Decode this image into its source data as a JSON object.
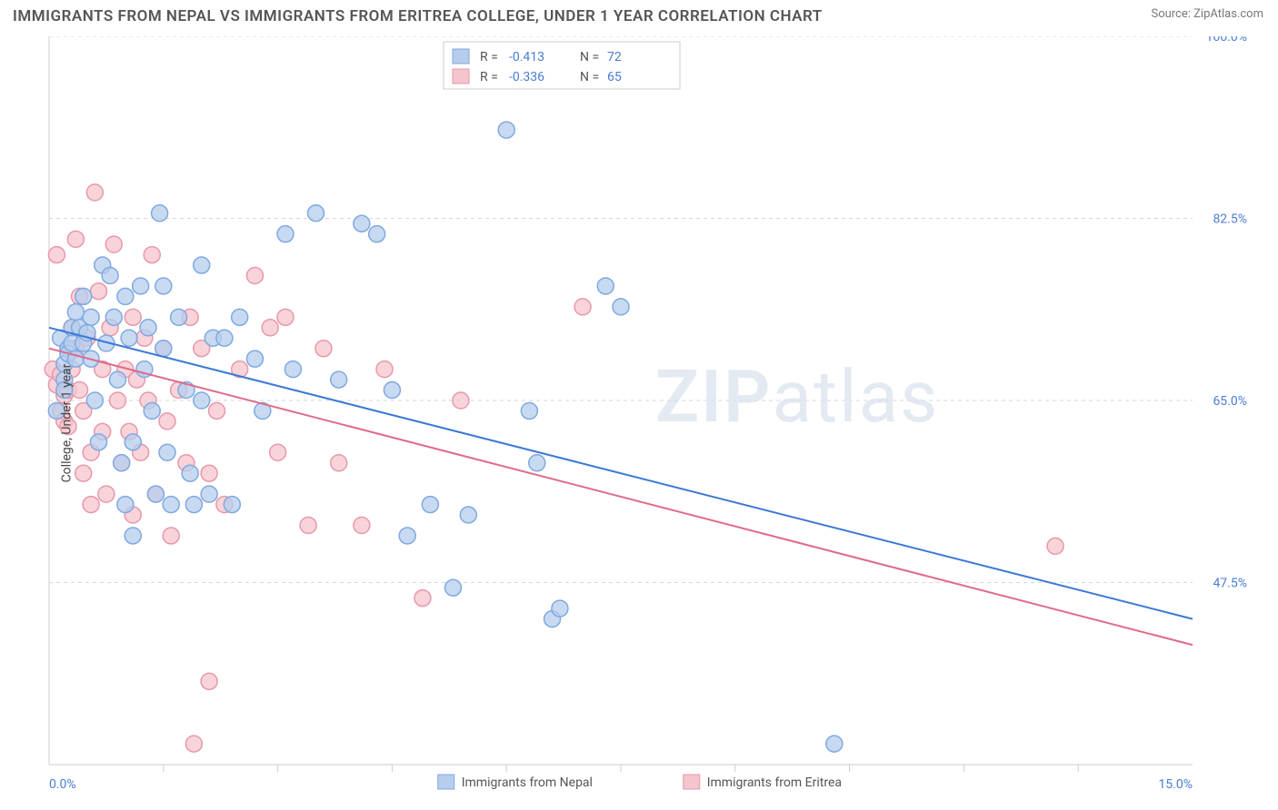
{
  "title": "IMMIGRANTS FROM NEPAL VS IMMIGRANTS FROM ERITREA COLLEGE, UNDER 1 YEAR CORRELATION CHART",
  "source_label": "Source: ZipAtlas.com",
  "ylabel": "College, Under 1 year",
  "watermark": {
    "part1": "ZIP",
    "part2": "atlas"
  },
  "chart": {
    "type": "scatter",
    "xlim": [
      0,
      15
    ],
    "ylim": [
      30,
      100
    ],
    "x_tick_labels": {
      "0": "0.0%",
      "15": "15.0%"
    },
    "x_minor_ticks": [
      1.5,
      3,
      4.5,
      6,
      7.5,
      9,
      10.5,
      12,
      13.5
    ],
    "y_gridlines": [
      47.5,
      65.0,
      82.5,
      100.0
    ],
    "y_tick_labels": {
      "47.5": "47.5%",
      "65.0": "65.0%",
      "82.5": "82.5%",
      "100.0": "100.0%"
    },
    "background_color": "#ffffff",
    "grid_color": "#d7d7d7",
    "axis_color": "#cccccc",
    "marker_radius": 9,
    "marker_stroke_width": 1.5,
    "line_width": 2,
    "series": [
      {
        "name": "Immigrants from Nepal",
        "fill": "#b6cded",
        "stroke": "#7fa9e0",
        "line_color": "#3b78d6",
        "R": "-0.413",
        "N": "72",
        "trend": {
          "x1": 0,
          "y1": 72.0,
          "x2": 15,
          "y2": 44.0
        },
        "points": [
          [
            0.1,
            64
          ],
          [
            0.15,
            71
          ],
          [
            0.2,
            68.5
          ],
          [
            0.2,
            67
          ],
          [
            0.2,
            66
          ],
          [
            0.25,
            70
          ],
          [
            0.25,
            69.5
          ],
          [
            0.3,
            72
          ],
          [
            0.3,
            70.5
          ],
          [
            0.35,
            73.5
          ],
          [
            0.35,
            69
          ],
          [
            0.4,
            72
          ],
          [
            0.45,
            75
          ],
          [
            0.45,
            70.5
          ],
          [
            0.5,
            71.5
          ],
          [
            0.55,
            73
          ],
          [
            0.55,
            69
          ],
          [
            0.6,
            65
          ],
          [
            0.65,
            61
          ],
          [
            0.7,
            78
          ],
          [
            0.75,
            70.5
          ],
          [
            0.8,
            77
          ],
          [
            0.85,
            73
          ],
          [
            0.9,
            67
          ],
          [
            0.95,
            59
          ],
          [
            1.0,
            75
          ],
          [
            1.0,
            55
          ],
          [
            1.05,
            71
          ],
          [
            1.1,
            61
          ],
          [
            1.1,
            52
          ],
          [
            1.2,
            76
          ],
          [
            1.25,
            68
          ],
          [
            1.3,
            72
          ],
          [
            1.35,
            64
          ],
          [
            1.4,
            56
          ],
          [
            1.45,
            83
          ],
          [
            1.5,
            76
          ],
          [
            1.5,
            70
          ],
          [
            1.55,
            60
          ],
          [
            1.6,
            55
          ],
          [
            1.7,
            73
          ],
          [
            1.8,
            66
          ],
          [
            1.85,
            58
          ],
          [
            1.9,
            55
          ],
          [
            2.0,
            78
          ],
          [
            2.0,
            65
          ],
          [
            2.1,
            56
          ],
          [
            2.15,
            71
          ],
          [
            2.3,
            71
          ],
          [
            2.4,
            55
          ],
          [
            2.5,
            73
          ],
          [
            2.7,
            69
          ],
          [
            2.8,
            64
          ],
          [
            3.1,
            81
          ],
          [
            3.2,
            68
          ],
          [
            3.5,
            83
          ],
          [
            3.8,
            67
          ],
          [
            4.1,
            82
          ],
          [
            4.3,
            81
          ],
          [
            4.5,
            66
          ],
          [
            4.7,
            52
          ],
          [
            5.0,
            55
          ],
          [
            5.3,
            47
          ],
          [
            5.5,
            54
          ],
          [
            6.0,
            91
          ],
          [
            6.3,
            64
          ],
          [
            6.4,
            59
          ],
          [
            6.6,
            44
          ],
          [
            6.7,
            45
          ],
          [
            7.3,
            76
          ],
          [
            7.5,
            74
          ],
          [
            10.3,
            32
          ]
        ]
      },
      {
        "name": "Immigrants from Eritrea",
        "fill": "#f5c5ce",
        "stroke": "#e898aa",
        "line_color": "#e06a8a",
        "R": "-0.336",
        "N": "65",
        "trend": {
          "x1": 0,
          "y1": 70.0,
          "x2": 15,
          "y2": 41.5
        },
        "points": [
          [
            0.05,
            68
          ],
          [
            0.1,
            66.5
          ],
          [
            0.1,
            79
          ],
          [
            0.15,
            67.5
          ],
          [
            0.15,
            64
          ],
          [
            0.2,
            65.5
          ],
          [
            0.2,
            63
          ],
          [
            0.25,
            62.5
          ],
          [
            0.25,
            66
          ],
          [
            0.3,
            68
          ],
          [
            0.3,
            72
          ],
          [
            0.35,
            70
          ],
          [
            0.35,
            80.5
          ],
          [
            0.4,
            66
          ],
          [
            0.4,
            75
          ],
          [
            0.45,
            64
          ],
          [
            0.45,
            58
          ],
          [
            0.5,
            71
          ],
          [
            0.55,
            60
          ],
          [
            0.55,
            55
          ],
          [
            0.6,
            85
          ],
          [
            0.65,
            75.5
          ],
          [
            0.7,
            68
          ],
          [
            0.7,
            62
          ],
          [
            0.75,
            56
          ],
          [
            0.8,
            72
          ],
          [
            0.85,
            80
          ],
          [
            0.9,
            65
          ],
          [
            0.95,
            59
          ],
          [
            1.0,
            68
          ],
          [
            1.05,
            62
          ],
          [
            1.1,
            73
          ],
          [
            1.1,
            54
          ],
          [
            1.15,
            67
          ],
          [
            1.2,
            60
          ],
          [
            1.25,
            71
          ],
          [
            1.3,
            65
          ],
          [
            1.35,
            79
          ],
          [
            1.4,
            56
          ],
          [
            1.5,
            70
          ],
          [
            1.55,
            63
          ],
          [
            1.6,
            52
          ],
          [
            1.7,
            66
          ],
          [
            1.8,
            59
          ],
          [
            1.85,
            73
          ],
          [
            1.9,
            32
          ],
          [
            2.0,
            70
          ],
          [
            2.1,
            58
          ],
          [
            2.1,
            38
          ],
          [
            2.2,
            64
          ],
          [
            2.3,
            55
          ],
          [
            2.5,
            68
          ],
          [
            2.7,
            77
          ],
          [
            2.9,
            72
          ],
          [
            3.0,
            60
          ],
          [
            3.1,
            73
          ],
          [
            3.4,
            53
          ],
          [
            3.6,
            70
          ],
          [
            3.8,
            59
          ],
          [
            4.1,
            53
          ],
          [
            4.4,
            68
          ],
          [
            4.9,
            46
          ],
          [
            5.4,
            65
          ],
          [
            7.0,
            74
          ],
          [
            13.2,
            51
          ]
        ]
      }
    ],
    "legend_top": {
      "rows": [
        {
          "swatch_fill": "#b6cded",
          "swatch_stroke": "#7fa9e0",
          "R_label": "R =",
          "R_val": "-0.413",
          "N_label": "N =",
          "N_val": "72"
        },
        {
          "swatch_fill": "#f5c5ce",
          "swatch_stroke": "#e898aa",
          "R_label": "R =",
          "R_val": "-0.336",
          "N_label": "N =",
          "N_val": "65"
        }
      ],
      "label_color": "#555555",
      "value_color": "#4a7dd4"
    }
  }
}
